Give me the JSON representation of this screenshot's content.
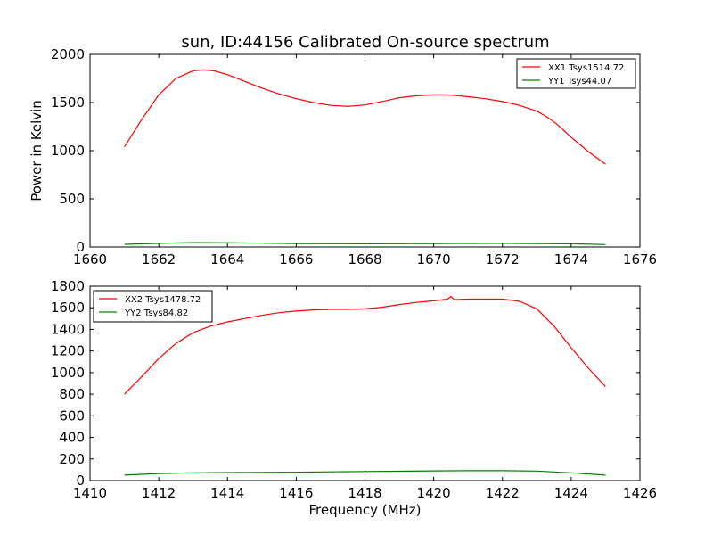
{
  "figure": {
    "title": "sun, ID:44156 Calibrated On-source spectrum"
  },
  "chart_data": [
    {
      "type": "line",
      "title": "sun, ID:44156 Calibrated On-source spectrum",
      "xlabel": "",
      "ylabel": "Power in Kelvin",
      "xlim": [
        1660,
        1676
      ],
      "ylim": [
        0,
        2000
      ],
      "xticks": [
        "1660",
        "1662",
        "1664",
        "1666",
        "1668",
        "1670",
        "1672",
        "1674",
        "1676"
      ],
      "yticks": [
        "0",
        "500",
        "1000",
        "1500",
        "2000"
      ],
      "grid": false,
      "legend_position": "top-right",
      "series": [
        {
          "name": "XX1 Tsys1514.72",
          "color": "#ff0000",
          "x": [
            1661.0,
            1661.5,
            1662.0,
            1662.5,
            1663.0,
            1663.3,
            1663.6,
            1664.0,
            1664.5,
            1665.0,
            1665.5,
            1666.0,
            1666.5,
            1667.0,
            1667.5,
            1668.0,
            1668.5,
            1669.0,
            1669.5,
            1670.0,
            1670.3,
            1670.6,
            1671.0,
            1671.5,
            1672.0,
            1672.5,
            1673.0,
            1673.3,
            1673.6,
            1674.0,
            1674.5,
            1675.0
          ],
          "values": [
            1040,
            1320,
            1580,
            1750,
            1830,
            1840,
            1830,
            1790,
            1720,
            1650,
            1590,
            1540,
            1500,
            1470,
            1460,
            1475,
            1510,
            1550,
            1570,
            1580,
            1580,
            1575,
            1560,
            1540,
            1510,
            1470,
            1410,
            1350,
            1270,
            1140,
            990,
            860
          ]
        },
        {
          "name": "YY1 Tsys44.07",
          "color": "#008000",
          "x": [
            1661.0,
            1662.0,
            1663.0,
            1664.0,
            1665.0,
            1666.0,
            1667.0,
            1668.0,
            1669.0,
            1670.0,
            1671.0,
            1672.0,
            1673.0,
            1674.0,
            1675.0
          ],
          "values": [
            28,
            38,
            45,
            44,
            40,
            36,
            34,
            33,
            34,
            36,
            37,
            38,
            36,
            33,
            25
          ]
        }
      ]
    },
    {
      "type": "line",
      "title": "",
      "xlabel": "Frequency (MHz)",
      "ylabel": "",
      "xlim": [
        1410,
        1426
      ],
      "ylim": [
        0,
        1800
      ],
      "xticks": [
        "1410",
        "1412",
        "1414",
        "1416",
        "1418",
        "1420",
        "1422",
        "1424",
        "1426"
      ],
      "yticks": [
        "0",
        "200",
        "400",
        "600",
        "800",
        "1000",
        "1200",
        "1400",
        "1600",
        "1800"
      ],
      "grid": false,
      "legend_position": "top-left",
      "series": [
        {
          "name": "XX2 Tsys1478.72",
          "color": "#ff0000",
          "x": [
            1411.0,
            1411.5,
            1412.0,
            1412.5,
            1413.0,
            1413.5,
            1414.0,
            1414.5,
            1415.0,
            1415.5,
            1416.0,
            1416.5,
            1417.0,
            1417.5,
            1418.0,
            1418.5,
            1419.0,
            1419.5,
            1420.0,
            1420.4,
            1420.5,
            1420.55,
            1420.6,
            1421.0,
            1421.5,
            1422.0,
            1422.5,
            1423.0,
            1423.5,
            1424.0,
            1424.5,
            1425.0
          ],
          "values": [
            800,
            960,
            1130,
            1270,
            1370,
            1430,
            1470,
            1500,
            1530,
            1555,
            1570,
            1580,
            1585,
            1585,
            1590,
            1605,
            1630,
            1650,
            1665,
            1680,
            1705,
            1690,
            1675,
            1680,
            1680,
            1680,
            1660,
            1590,
            1430,
            1230,
            1040,
            870
          ]
        },
        {
          "name": "YY2 Tsys84.82",
          "color": "#008000",
          "x": [
            1411.0,
            1412.0,
            1413.0,
            1414.0,
            1415.0,
            1416.0,
            1417.0,
            1418.0,
            1419.0,
            1420.0,
            1421.0,
            1422.0,
            1423.0,
            1424.0,
            1425.0
          ],
          "values": [
            50,
            65,
            72,
            74,
            76,
            78,
            81,
            84,
            87,
            90,
            92,
            92,
            88,
            72,
            50
          ]
        }
      ]
    }
  ]
}
